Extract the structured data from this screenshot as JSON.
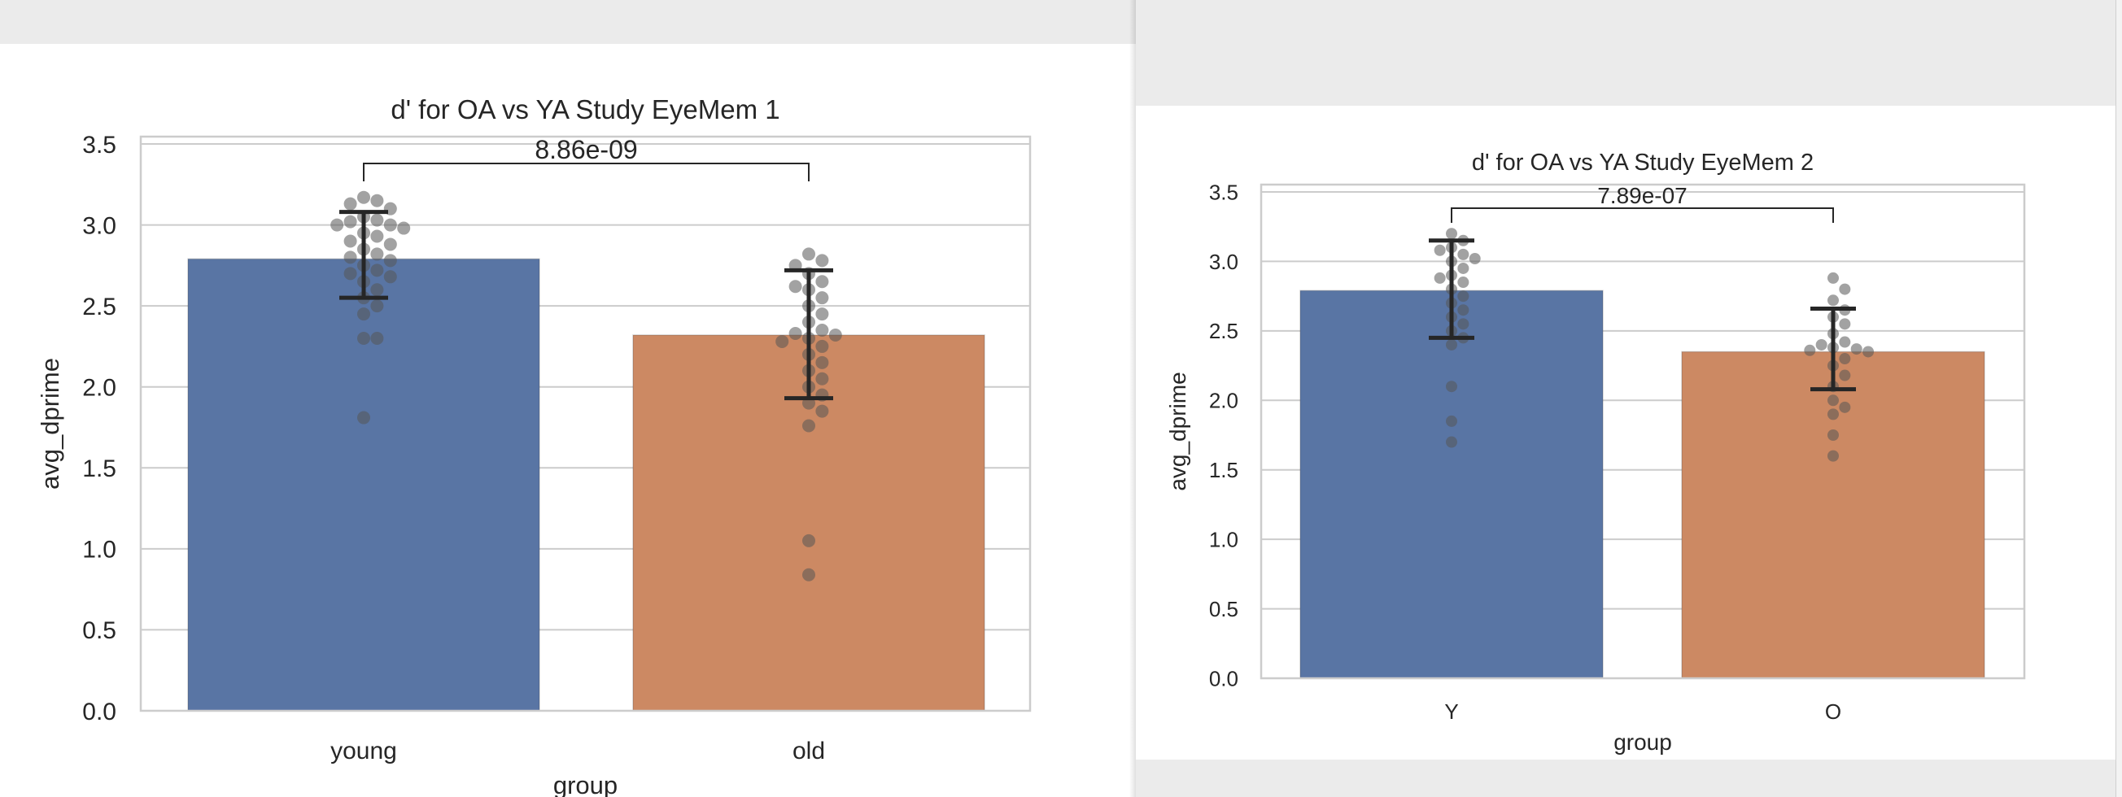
{
  "chart_data": [
    {
      "type": "bar",
      "title": "d' for OA vs YA Study EyeMem 1",
      "xlabel": "group",
      "ylabel": "avg_dprime",
      "ylim": [
        0,
        3.5
      ],
      "yticks": [
        "0.0",
        "0.5",
        "1.0",
        "1.5",
        "2.0",
        "2.5",
        "3.0",
        "3.5"
      ],
      "grid": true,
      "categories": [
        "young",
        "old"
      ],
      "values": [
        2.79,
        2.32
      ],
      "error_bars": [
        [
          2.55,
          3.08
        ],
        [
          1.93,
          2.72
        ]
      ],
      "bar_colors": [
        "#5975a4",
        "#cc8963"
      ],
      "annotation": "8.86e-09",
      "points": [
        [
          3.17,
          3.15,
          3.13,
          3.1,
          3.05,
          3.03,
          3.02,
          3.0,
          3.0,
          2.98,
          2.95,
          2.93,
          2.9,
          2.88,
          2.85,
          2.82,
          2.8,
          2.78,
          2.75,
          2.72,
          2.7,
          2.68,
          2.65,
          2.6,
          2.55,
          2.5,
          2.45,
          2.3,
          2.3,
          1.81
        ],
        [
          2.82,
          2.78,
          2.75,
          2.7,
          2.65,
          2.62,
          2.6,
          2.55,
          2.5,
          2.45,
          2.4,
          2.35,
          2.33,
          2.32,
          2.3,
          2.28,
          2.25,
          2.2,
          2.15,
          2.1,
          2.05,
          2.0,
          1.95,
          1.9,
          1.85,
          1.76,
          1.05,
          0.84
        ]
      ]
    },
    {
      "type": "bar",
      "title": "d' for OA vs YA Study EyeMem 2",
      "xlabel": "group",
      "ylabel": "avg_dprime",
      "ylim": [
        0,
        3.5
      ],
      "yticks": [
        "0.0",
        "0.5",
        "1.0",
        "1.5",
        "2.0",
        "2.5",
        "3.0",
        "3.5"
      ],
      "grid": true,
      "categories": [
        "Y",
        "O"
      ],
      "values": [
        2.79,
        2.35
      ],
      "error_bars": [
        [
          2.45,
          3.15
        ],
        [
          2.08,
          2.66
        ]
      ],
      "bar_colors": [
        "#5975a4",
        "#cc8963"
      ],
      "annotation": "7.89e-07",
      "points": [
        [
          3.2,
          3.15,
          3.1,
          3.08,
          3.05,
          3.02,
          3.0,
          2.95,
          2.9,
          2.88,
          2.85,
          2.8,
          2.75,
          2.7,
          2.65,
          2.6,
          2.55,
          2.5,
          2.45,
          2.4,
          2.1,
          1.85,
          1.7
        ],
        [
          2.88,
          2.8,
          2.72,
          2.65,
          2.6,
          2.55,
          2.48,
          2.42,
          2.4,
          2.38,
          2.37,
          2.36,
          2.35,
          2.3,
          2.25,
          2.18,
          2.1,
          2.0,
          1.95,
          1.9,
          1.75,
          1.6
        ]
      ]
    }
  ]
}
